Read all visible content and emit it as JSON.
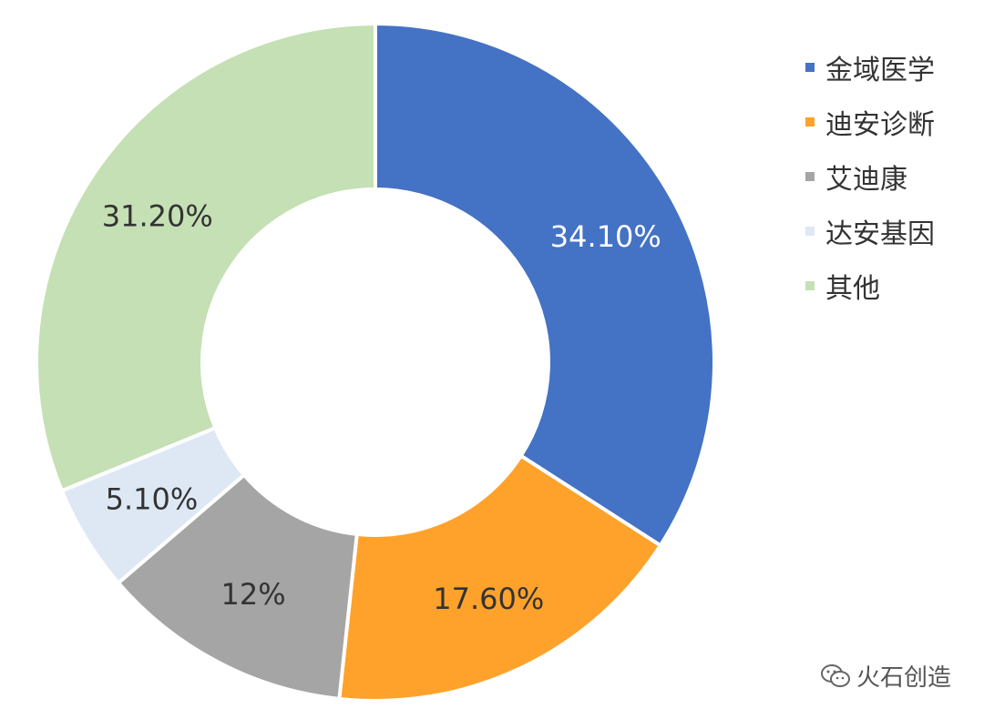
{
  "chart_data": {
    "type": "pie",
    "donut": true,
    "categories": [
      "金域医学",
      "迪安诊断",
      "艾迪康",
      "达安基因",
      "其他"
    ],
    "values": [
      34.1,
      17.6,
      12,
      5.1,
      31.2
    ],
    "data_labels": [
      "34.10%",
      "17.60%",
      "12%",
      "5.10%",
      "31.20%"
    ],
    "colors": [
      "#4472C4",
      "#FFA22B",
      "#A5A5A5",
      "#DEE8F5",
      "#C5E0B4"
    ],
    "label_colors": [
      "#ffffff",
      "#333333",
      "#333333",
      "#333333",
      "#333333"
    ],
    "legend_position": "right",
    "start_angle": "12 o'clock, clockwise"
  },
  "watermark": {
    "text": "火石创造",
    "icon": "wechat-icon"
  }
}
